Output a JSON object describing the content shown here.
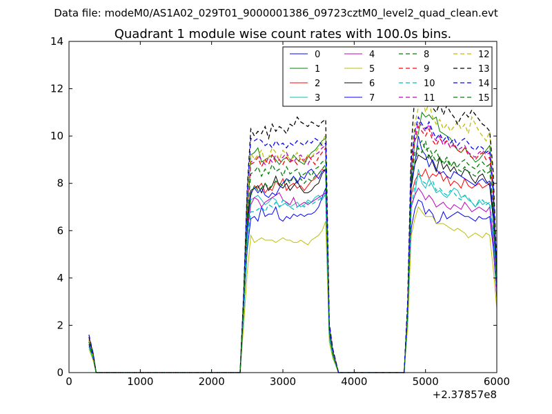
{
  "suptitle": "Data file: modeM0/AS1A02_029T01_9000001386_09723cztM0_level2_quad_clean.evt",
  "chart_data": {
    "type": "line",
    "title": "Quadrant 1 module wise count rates with 100.0s bins.",
    "xlabel": "",
    "ylabel": "",
    "x_offset_label": "+2.37857e8",
    "xlim": [
      0,
      6000
    ],
    "ylim": [
      0,
      14
    ],
    "x_ticks": [
      "0",
      "1000",
      "2000",
      "3000",
      "4000",
      "5000",
      "6000"
    ],
    "y_ticks": [
      "0",
      "2",
      "4",
      "6",
      "8",
      "10",
      "12",
      "14"
    ],
    "grid": false,
    "legend_position": "top-right",
    "x": [
      280,
      340,
      380,
      2400,
      2450,
      2500,
      2550,
      2600,
      2650,
      2700,
      2750,
      2800,
      2850,
      2900,
      2950,
      3000,
      3050,
      3100,
      3150,
      3200,
      3250,
      3300,
      3350,
      3400,
      3450,
      3500,
      3550,
      3600,
      3650,
      3700,
      3780,
      4700,
      4750,
      4800,
      4850,
      4900,
      4950,
      5000,
      5050,
      5100,
      5150,
      5200,
      5250,
      5300,
      5350,
      5400,
      5450,
      5500,
      5550,
      5600,
      5650,
      5700,
      5750,
      5800,
      5850,
      5900,
      5950,
      6000
    ],
    "series": [
      {
        "name": "0",
        "color": "#0000ff",
        "dash": false,
        "values": [
          1.2,
          0.6,
          0,
          0,
          2.6,
          5.2,
          6.5,
          6.6,
          6.4,
          7.0,
          6.6,
          6.7,
          6.7,
          7.0,
          6.5,
          6.4,
          6.6,
          6.5,
          6.7,
          6.6,
          6.7,
          6.6,
          6.7,
          6.7,
          6.8,
          7.0,
          7.4,
          7.8,
          1.6,
          0.8,
          0,
          0,
          2.2,
          6.1,
          6.9,
          7.3,
          7.2,
          6.7,
          6.9,
          6.7,
          6.3,
          6.4,
          6.8,
          6.5,
          6.6,
          6.7,
          6.8,
          6.7,
          6.6,
          6.6,
          6.5,
          6.4,
          6.6,
          6.5,
          6.5,
          6.6,
          5.3,
          3.2
        ]
      },
      {
        "name": "1",
        "color": "#008000",
        "dash": false,
        "values": [
          1.3,
          0.7,
          0,
          0,
          3.1,
          6.9,
          9.2,
          9.3,
          9.5,
          8.9,
          9.0,
          9.1,
          9.2,
          9.0,
          8.8,
          9.0,
          9.1,
          8.9,
          9.2,
          9.0,
          8.9,
          8.8,
          9.1,
          9.3,
          9.4,
          9.6,
          9.8,
          9.9,
          1.9,
          0.9,
          0,
          0,
          2.6,
          8.1,
          9.8,
          10.1,
          11.0,
          10.8,
          10.9,
          10.7,
          10.8,
          10.2,
          10.1,
          10.0,
          9.9,
          9.6,
          9.4,
          9.3,
          9.5,
          9.3,
          9.1,
          8.9,
          9.0,
          9.2,
          9.4,
          9.6,
          7.7,
          4.0
        ]
      },
      {
        "name": "2",
        "color": "#ff0000",
        "dash": false,
        "values": [
          1.4,
          0.7,
          0,
          0,
          2.8,
          6.4,
          7.5,
          7.9,
          7.8,
          8.0,
          7.6,
          7.8,
          7.7,
          8.1,
          7.9,
          8.2,
          7.7,
          7.9,
          8.0,
          7.8,
          7.9,
          7.7,
          7.9,
          8.1,
          8.2,
          8.4,
          8.6,
          8.5,
          1.8,
          0.8,
          0,
          0,
          2.5,
          7.5,
          8.1,
          8.4,
          8.3,
          8.6,
          8.2,
          8.4,
          8.3,
          8.5,
          8.1,
          8.3,
          7.9,
          8.1,
          8.0,
          7.8,
          8.2,
          7.9,
          7.8,
          7.9,
          8.0,
          7.8,
          7.9,
          8.0,
          6.6,
          3.6
        ]
      },
      {
        "name": "3",
        "color": "#00bfbf",
        "dash": false,
        "values": [
          1.1,
          0.6,
          0,
          0,
          2.5,
          5.6,
          7.3,
          7.4,
          7.5,
          7.3,
          7.1,
          7.2,
          7.4,
          7.3,
          7.0,
          7.1,
          7.2,
          7.0,
          7.1,
          7.2,
          7.0,
          7.1,
          7.3,
          7.2,
          7.4,
          7.5,
          7.3,
          7.6,
          1.5,
          0.7,
          0,
          0,
          2.3,
          7.1,
          7.5,
          8.6,
          8.0,
          7.8,
          8.2,
          7.9,
          7.6,
          7.7,
          7.5,
          7.4,
          7.6,
          7.8,
          7.7,
          7.4,
          7.5,
          7.3,
          7.2,
          7.0,
          7.3,
          7.1,
          7.2,
          7.1,
          5.8,
          3.3
        ]
      },
      {
        "name": "4",
        "color": "#bf00bf",
        "dash": false,
        "values": [
          1.2,
          0.6,
          0,
          0,
          2.6,
          6.0,
          7.1,
          7.4,
          7.3,
          7.0,
          7.2,
          7.3,
          7.4,
          7.5,
          7.6,
          7.3,
          7.2,
          7.1,
          7.4,
          7.0,
          7.1,
          7.2,
          7.1,
          7.2,
          7.3,
          7.4,
          7.5,
          7.6,
          1.6,
          0.8,
          0,
          0,
          2.3,
          7.0,
          7.5,
          7.8,
          7.6,
          7.3,
          7.5,
          7.3,
          7.0,
          7.1,
          7.2,
          7.0,
          6.9,
          7.1,
          7.0,
          6.9,
          7.2,
          7.0,
          6.8,
          6.9,
          7.0,
          6.9,
          6.8,
          7.0,
          5.6,
          3.1
        ]
      },
      {
        "name": "5",
        "color": "#bfbf00",
        "dash": false,
        "values": [
          1.0,
          0.5,
          0,
          0,
          2.0,
          4.2,
          5.8,
          5.5,
          5.6,
          5.7,
          5.6,
          5.6,
          5.6,
          5.5,
          5.6,
          5.7,
          5.6,
          5.6,
          5.5,
          5.5,
          5.6,
          5.5,
          5.4,
          5.6,
          5.7,
          5.8,
          6.0,
          6.4,
          1.3,
          0.6,
          0,
          0,
          1.9,
          5.8,
          6.5,
          7.0,
          6.8,
          6.6,
          6.6,
          6.6,
          6.3,
          6.3,
          6.3,
          6.2,
          6.1,
          6.0,
          6.1,
          6.0,
          5.9,
          5.7,
          5.8,
          5.9,
          5.8,
          5.7,
          5.9,
          5.8,
          4.4,
          2.7
        ]
      },
      {
        "name": "6",
        "color": "#000000",
        "dash": false,
        "values": [
          1.3,
          0.7,
          0,
          0,
          2.9,
          6.5,
          7.7,
          7.8,
          7.9,
          7.6,
          8.0,
          7.7,
          7.9,
          8.3,
          7.9,
          7.8,
          8.0,
          7.7,
          7.9,
          8.1,
          7.8,
          7.6,
          7.6,
          7.7,
          7.9,
          8.0,
          8.4,
          8.6,
          1.8,
          0.9,
          0,
          0,
          2.4,
          7.8,
          8.8,
          9.2,
          9.1,
          9.0,
          9.2,
          8.9,
          8.5,
          9.1,
          8.6,
          8.8,
          8.5,
          8.7,
          8.4,
          8.3,
          8.6,
          8.5,
          8.2,
          8.0,
          8.3,
          8.4,
          8.1,
          7.9,
          6.5,
          3.7
        ]
      },
      {
        "name": "7",
        "color": "#0000ff",
        "dash": false,
        "values": [
          1.2,
          0.6,
          0,
          0,
          2.7,
          6.1,
          7.6,
          7.8,
          7.6,
          7.8,
          7.5,
          7.4,
          7.6,
          7.5,
          7.8,
          8.0,
          8.2,
          8.1,
          8.3,
          8.0,
          8.3,
          8.2,
          8.5,
          8.6,
          8.4,
          8.2,
          8.5,
          8.6,
          1.7,
          0.8,
          0,
          0,
          2.4,
          8.0,
          8.8,
          10.0,
          9.4,
          9.2,
          8.7,
          9.0,
          8.6,
          8.4,
          8.5,
          8.3,
          8.2,
          8.5,
          8.4,
          8.3,
          8.2,
          8.1,
          8.0,
          7.9,
          8.1,
          8.2,
          8.0,
          8.1,
          6.8,
          3.6
        ]
      },
      {
        "name": "8",
        "color": "#008000",
        "dash": true,
        "values": [
          1.3,
          0.7,
          0,
          0,
          2.8,
          6.2,
          7.5,
          7.9,
          7.7,
          7.8,
          8.0,
          7.8,
          7.9,
          8.1,
          8.0,
          7.9,
          8.2,
          8.0,
          8.3,
          8.1,
          8.2,
          8.0,
          8.2,
          8.1,
          8.3,
          8.4,
          8.6,
          8.8,
          1.7,
          0.8,
          0,
          0,
          2.4,
          8.2,
          8.9,
          9.5,
          9.3,
          9.8,
          9.0,
          9.2,
          9.4,
          9.0,
          8.9,
          9.1,
          8.8,
          8.9,
          8.7,
          8.9,
          9.0,
          8.8,
          8.7,
          8.6,
          8.8,
          8.9,
          8.7,
          8.8,
          7.0,
          3.7
        ]
      },
      {
        "name": "9",
        "color": "#ff0000",
        "dash": true,
        "values": [
          1.4,
          0.7,
          0,
          0,
          3.0,
          6.8,
          8.8,
          8.9,
          9.1,
          8.7,
          9.0,
          8.8,
          9.2,
          8.9,
          9.0,
          8.8,
          9.1,
          8.9,
          9.0,
          8.8,
          9.1,
          8.9,
          9.2,
          9.0,
          8.8,
          9.1,
          9.3,
          9.5,
          1.9,
          0.9,
          0,
          0,
          2.6,
          8.5,
          9.8,
          10.4,
          10.2,
          10.0,
          10.3,
          9.8,
          9.6,
          9.9,
          9.7,
          9.8,
          9.5,
          9.6,
          9.4,
          9.3,
          9.5,
          9.2,
          9.1,
          9.0,
          9.2,
          9.3,
          9.0,
          9.1,
          7.6,
          3.8
        ]
      },
      {
        "name": "10",
        "color": "#00bfbf",
        "dash": true,
        "values": [
          1.1,
          0.6,
          0,
          0,
          2.5,
          5.6,
          6.8,
          6.8,
          6.9,
          7.0,
          6.8,
          7.1,
          7.0,
          7.2,
          7.0,
          7.3,
          7.1,
          7.0,
          6.9,
          7.0,
          7.1,
          7.0,
          7.2,
          7.1,
          7.2,
          7.3,
          7.4,
          7.5,
          1.5,
          0.7,
          0,
          0,
          2.3,
          7.0,
          7.9,
          8.4,
          8.1,
          8.0,
          7.9,
          8.1,
          7.7,
          7.8,
          7.6,
          7.5,
          7.7,
          7.6,
          7.4,
          7.3,
          7.5,
          7.4,
          7.2,
          7.0,
          7.2,
          7.3,
          7.1,
          7.2,
          6.0,
          3.3
        ]
      },
      {
        "name": "11",
        "color": "#bf00bf",
        "dash": true,
        "values": [
          1.4,
          0.7,
          0,
          0,
          3.1,
          7.1,
          8.9,
          9.0,
          9.2,
          9.0,
          8.8,
          9.1,
          8.9,
          9.2,
          9.0,
          9.1,
          9.3,
          9.0,
          8.9,
          9.1,
          9.2,
          9.0,
          8.8,
          9.1,
          9.2,
          9.3,
          9.5,
          9.6,
          2.0,
          0.9,
          0,
          0,
          2.7,
          8.8,
          10.0,
          10.6,
          10.4,
          10.2,
          10.5,
          10.0,
          9.8,
          10.0,
          9.6,
          9.8,
          9.5,
          9.7,
          9.4,
          9.5,
          9.6,
          9.3,
          9.2,
          9.1,
          9.3,
          9.4,
          9.2,
          9.3,
          7.8,
          3.9
        ]
      },
      {
        "name": "12",
        "color": "#bfbf00",
        "dash": true,
        "values": [
          1.4,
          0.7,
          0,
          0,
          3.1,
          7.2,
          9.3,
          9.0,
          9.2,
          9.4,
          8.9,
          9.1,
          9.5,
          9.3,
          9.0,
          9.4,
          9.2,
          9.0,
          9.1,
          9.3,
          9.0,
          8.9,
          9.2,
          9.1,
          9.3,
          9.5,
          9.7,
          10.1,
          2.0,
          0.9,
          0,
          0,
          2.8,
          9.0,
          10.5,
          11.2,
          11.8,
          11.0,
          11.4,
          10.8,
          10.5,
          10.7,
          10.3,
          10.5,
          10.2,
          10.4,
          10.6,
          10.3,
          10.5,
          10.1,
          10.8,
          10.5,
          10.2,
          10.0,
          9.8,
          10.2,
          8.0,
          4.1
        ]
      },
      {
        "name": "13",
        "color": "#000000",
        "dash": true,
        "values": [
          1.5,
          0.8,
          0,
          0,
          3.4,
          7.8,
          10.3,
          10.0,
          10.2,
          10.1,
          10.4,
          9.9,
          10.5,
          10.2,
          10.4,
          10.3,
          10.1,
          10.5,
          10.4,
          10.8,
          10.6,
          10.5,
          10.4,
          10.6,
          10.5,
          10.4,
          10.6,
          10.7,
          2.1,
          1.0,
          0,
          0,
          3.0,
          9.5,
          11.8,
          12.0,
          11.7,
          11.5,
          11.8,
          11.2,
          11.0,
          11.4,
          10.9,
          11.3,
          11.0,
          10.8,
          10.5,
          10.8,
          11.0,
          10.8,
          11.1,
          10.9,
          10.7,
          10.5,
          10.4,
          10.2,
          8.5,
          4.3
        ]
      },
      {
        "name": "14",
        "color": "#0000ff",
        "dash": true,
        "values": [
          1.6,
          0.8,
          0,
          0,
          3.3,
          7.6,
          9.9,
          9.8,
          9.9,
          9.8,
          9.6,
          9.7,
          9.5,
          9.8,
          9.6,
          9.7,
          9.5,
          9.7,
          9.6,
          9.8,
          9.7,
          9.6,
          9.8,
          9.7,
          9.9,
          9.8,
          9.6,
          9.7,
          2.0,
          1.0,
          0,
          0,
          2.9,
          9.0,
          10.2,
          10.8,
          10.5,
          10.3,
          10.6,
          10.2,
          9.9,
          10.1,
          9.8,
          10.0,
          9.7,
          9.9,
          9.6,
          9.8,
          9.9,
          9.7,
          9.5,
          9.4,
          9.6,
          9.5,
          9.3,
          9.4,
          7.8,
          4.0
        ]
      },
      {
        "name": "15",
        "color": "#008000",
        "dash": true,
        "values": [
          1.3,
          0.7,
          0,
          0,
          2.9,
          6.6,
          8.4,
          8.5,
          8.7,
          8.3,
          8.6,
          8.4,
          8.8,
          8.5,
          8.6,
          8.3,
          8.7,
          8.4,
          8.5,
          8.6,
          8.3,
          8.4,
          8.5,
          8.3,
          8.6,
          8.7,
          8.9,
          9.0,
          1.8,
          0.8,
          0,
          0,
          2.5,
          8.2,
          9.3,
          9.6,
          9.8,
          9.4,
          9.5,
          9.2,
          8.9,
          9.1,
          8.8,
          9.0,
          8.7,
          8.9,
          8.6,
          8.5,
          8.7,
          8.5,
          8.4,
          8.3,
          8.5,
          8.6,
          8.4,
          8.5,
          7.1,
          3.7
        ]
      }
    ]
  }
}
